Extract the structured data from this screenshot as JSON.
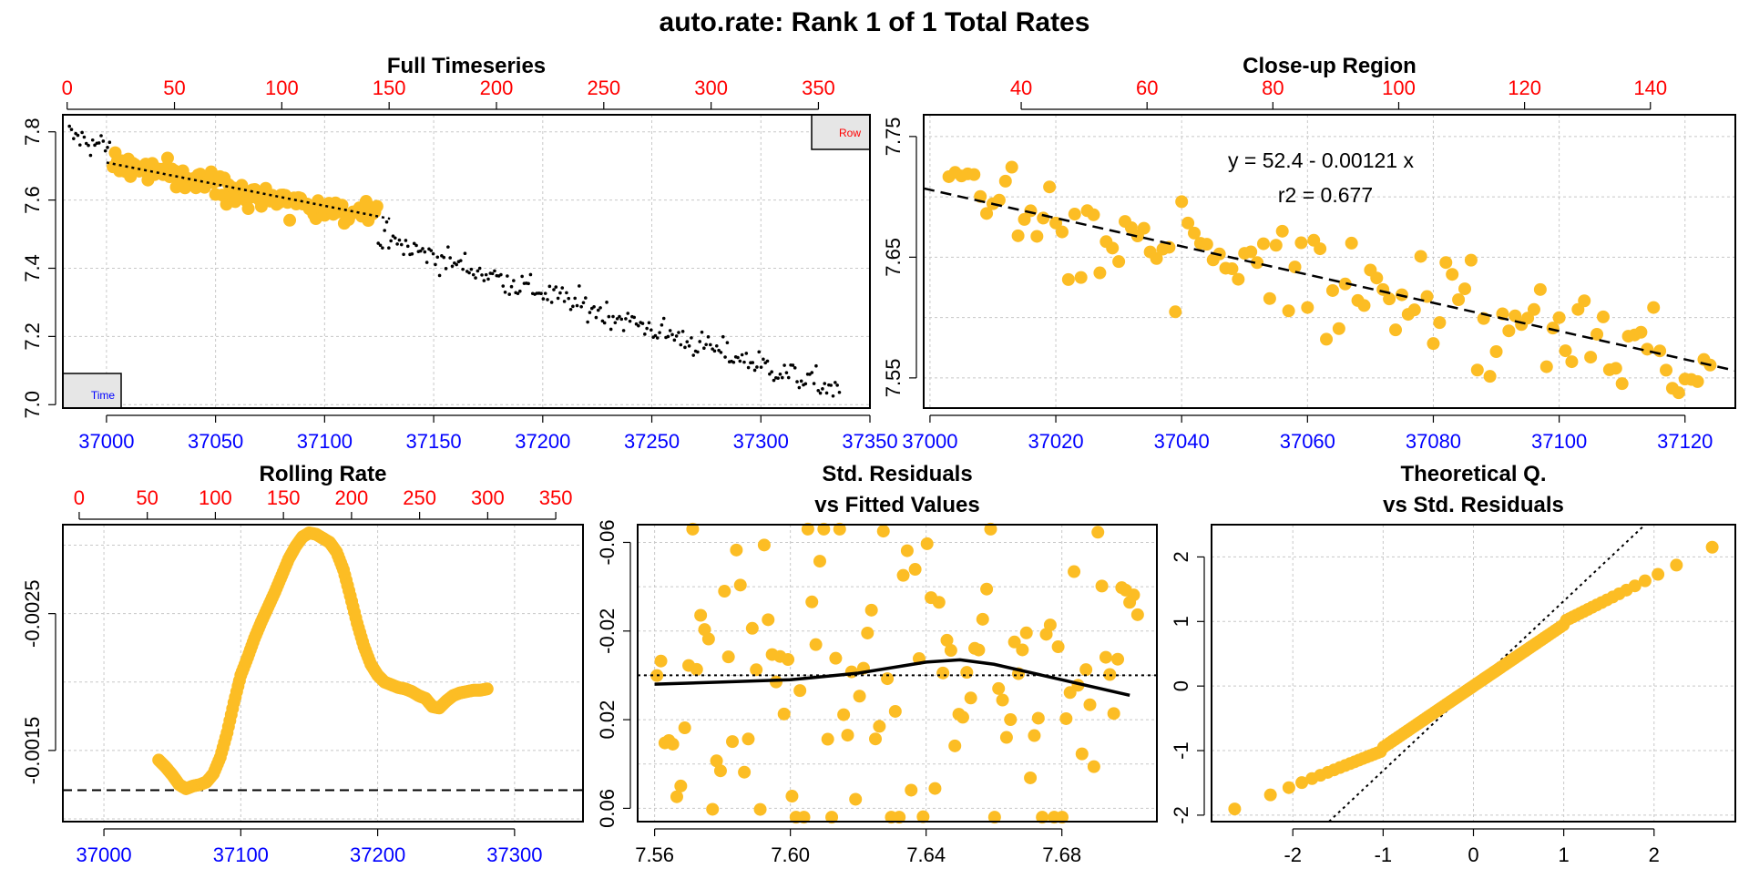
{
  "title": "auto.rate: Rank 1 of 1 Total Rates",
  "colors": {
    "point": "#FCBD24",
    "small_point": "#000000",
    "bottom_axis": "#0000FF",
    "top_axis": "#FF0000",
    "axis": "#000000",
    "legend_text_time": "#0000FF",
    "legend_text_row": "#FF0000"
  },
  "chart_data": [
    {
      "id": "full",
      "type": "scatter",
      "title": "Full Timeseries",
      "x_bottom_range": [
        36980,
        37350
      ],
      "x_bottom_ticks": [
        37000,
        37050,
        37100,
        37150,
        37200,
        37250,
        37300,
        37350
      ],
      "x_top_range": [
        -2,
        374
      ],
      "x_top_ticks": [
        0,
        50,
        100,
        150,
        200,
        250,
        300,
        350
      ],
      "y_range": [
        6.99,
        7.85
      ],
      "y_ticks": [
        7.0,
        7.2,
        7.4,
        7.6,
        7.8
      ],
      "legend_boxes": [
        "Time",
        "Row"
      ],
      "trend": {
        "x": [
          37000,
          37130
        ],
        "y": [
          7.71,
          7.545
        ]
      },
      "highlight_region_x": [
        37003,
        37124
      ],
      "data": {
        "x_start": 36983,
        "x_end": 37336,
        "count": 365,
        "y_start": 7.79,
        "y_end": 7.04,
        "noise": 0.028
      },
      "grid": true
    },
    {
      "id": "closeup",
      "type": "scatter",
      "title": "Close-up Region",
      "x_bottom_range": [
        36999,
        37128
      ],
      "x_bottom_ticks": [
        37000,
        37020,
        37040,
        37060,
        37080,
        37100,
        37120
      ],
      "x_top_range": [
        24.5,
        153.5
      ],
      "x_top_ticks": [
        40,
        60,
        80,
        100,
        120,
        140
      ],
      "y_range": [
        7.525,
        7.768
      ],
      "y_ticks": [
        7.55,
        7.65,
        7.75
      ],
      "equation": "y = 52.4 - 0.00121 x",
      "r2": "r2 = 0.677",
      "fit": {
        "x": [
          36999,
          37128
        ],
        "y": [
          7.707,
          7.556
        ]
      },
      "data": {
        "x_start": 37003,
        "x_end": 37124,
        "count": 122,
        "noise": 0.03
      },
      "grid": true
    },
    {
      "id": "rolling",
      "type": "line",
      "title": "Rolling Rate",
      "x_bottom_range": [
        36970,
        37350
      ],
      "x_bottom_ticks": [
        37000,
        37100,
        37200,
        37300
      ],
      "x_top_range": [
        -12,
        370
      ],
      "x_top_ticks": [
        0,
        50,
        100,
        150,
        200,
        250,
        300,
        350
      ],
      "y_range": [
        -0.00098,
        -0.00315
      ],
      "y_tick_labels": [
        "-0.0025",
        "-0.0015"
      ],
      "y_tick_values": [
        -0.0025,
        -0.0015
      ],
      "dashed_level": -0.00121,
      "series": [
        {
          "x": [
            37040,
            37045,
            37050,
            37055,
            37060,
            37065,
            37070,
            37075,
            37080,
            37085,
            37090,
            37095,
            37100,
            37105,
            37110,
            37115,
            37120,
            37125,
            37130,
            37135,
            37140,
            37145,
            37150,
            37155,
            37160,
            37165,
            37170,
            37175,
            37180,
            37185,
            37190,
            37195,
            37200,
            37205,
            37210,
            37215,
            37220,
            37225,
            37230,
            37235,
            37240,
            37245,
            37250,
            37255,
            37260,
            37265,
            37270,
            37275,
            37280
          ],
          "y": [
            -0.00143,
            -0.00138,
            -0.00132,
            -0.00125,
            -0.00122,
            -0.00124,
            -0.00125,
            -0.00127,
            -0.00133,
            -0.00145,
            -0.00163,
            -0.00185,
            -0.00205,
            -0.00218,
            -0.00232,
            -0.00244,
            -0.00255,
            -0.00266,
            -0.00278,
            -0.0029,
            -0.00299,
            -0.00306,
            -0.00309,
            -0.00308,
            -0.00305,
            -0.00302,
            -0.00295,
            -0.00282,
            -0.00263,
            -0.00243,
            -0.00226,
            -0.00213,
            -0.00205,
            -0.002,
            -0.00198,
            -0.00196,
            -0.00195,
            -0.00193,
            -0.0019,
            -0.00188,
            -0.00182,
            -0.00181,
            -0.00186,
            -0.0019,
            -0.00192,
            -0.00193,
            -0.00194,
            -0.00194,
            -0.00195
          ]
        }
      ],
      "grid": true
    },
    {
      "id": "resid",
      "type": "scatter",
      "title": "Std. Residuals",
      "subtitle": "vs Fitted Values",
      "x_range": [
        7.555,
        7.708
      ],
      "x_ticks": [
        7.56,
        7.6,
        7.64,
        7.68
      ],
      "x_tick_labels": [
        "7.56",
        "7.60",
        "7.64",
        "7.68"
      ],
      "y_range": [
        0.066,
        -0.068
      ],
      "y_ticks": [
        0.06,
        0.02,
        -0.02,
        -0.06
      ],
      "y_tick_labels": [
        "0.06",
        "0.02",
        "-0.02",
        "-0.06"
      ],
      "zero_line": 0,
      "smooth": {
        "x": [
          7.56,
          7.58,
          7.6,
          7.62,
          7.64,
          7.65,
          7.66,
          7.68,
          7.7
        ],
        "y": [
          0.004,
          0.003,
          0.002,
          -0.001,
          -0.006,
          -0.007,
          -0.005,
          0.002,
          0.009
        ]
      },
      "grid": true
    },
    {
      "id": "qq",
      "type": "scatter",
      "title": "Theoretical Q.",
      "subtitle": "vs Std. Residuals",
      "x_range": [
        -2.9,
        2.9
      ],
      "x_ticks": [
        -2,
        -1,
        0,
        1,
        2
      ],
      "y_range": [
        -2.1,
        2.5
      ],
      "y_ticks": [
        -2,
        -1,
        0,
        1,
        2
      ],
      "reference_line": {
        "x": [
          -1.6,
          1.9
        ],
        "y": [
          -2.1,
          2.5
        ]
      },
      "count": 122,
      "grid": true
    }
  ]
}
